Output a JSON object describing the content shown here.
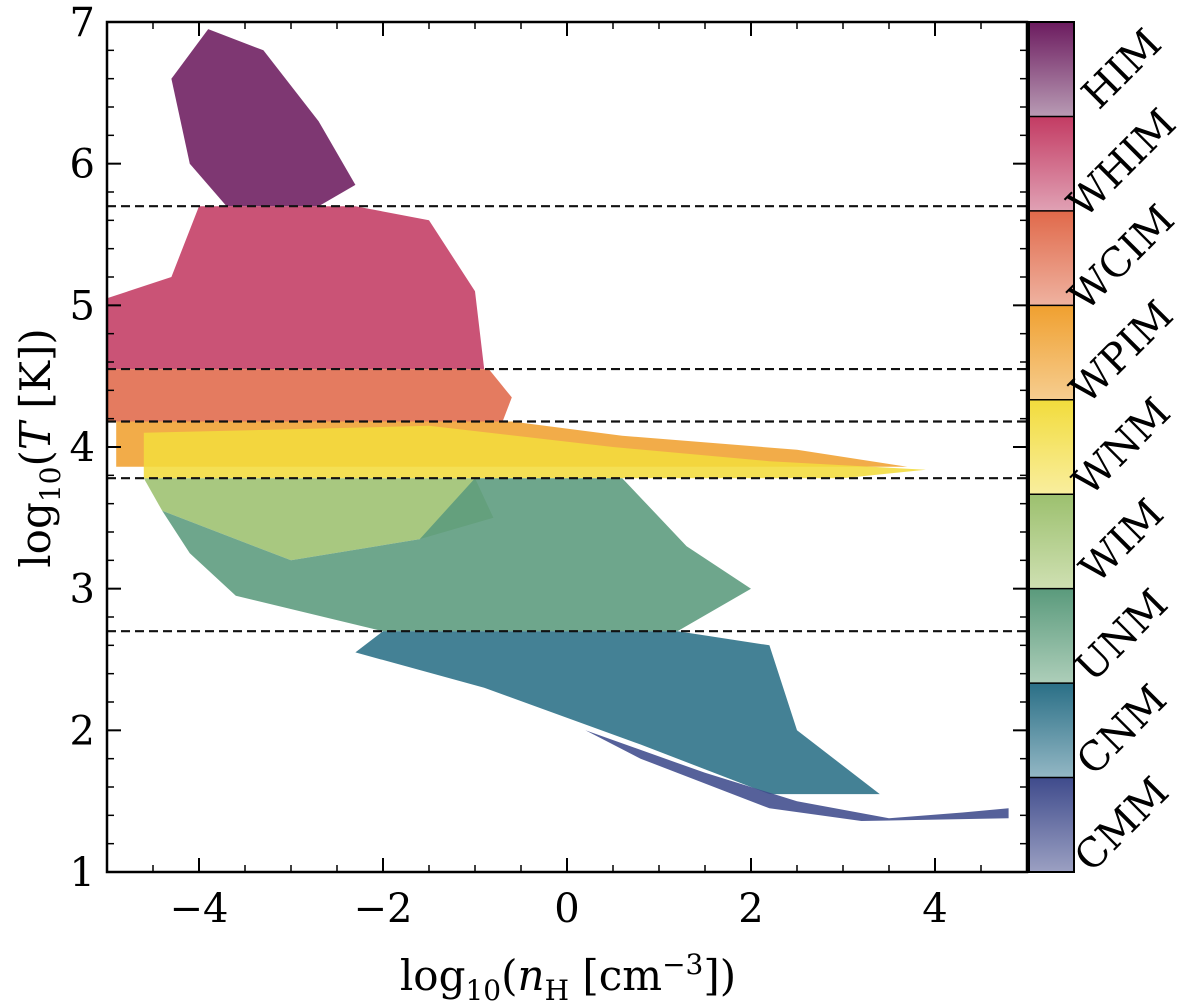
{
  "chart_data": {
    "type": "heatmap",
    "title": "",
    "xlabel": "log₁₀(nₕ [cm⁻³])",
    "xlabel_parts": {
      "prefix": "log",
      "sub": "10",
      "open": "(",
      "var": "n",
      "var_sub": "H",
      "unit": " [cm",
      "sup": "−3",
      "close": "])"
    },
    "ylabel": "log₁₀(T [K])",
    "ylabel_parts": {
      "prefix": "log",
      "sub": "10",
      "open": "(",
      "var": "T",
      "close": " [K])"
    },
    "xlim": [
      -5,
      5
    ],
    "ylim": [
      1,
      7
    ],
    "xticks": [
      -4,
      -2,
      0,
      2,
      4
    ],
    "xtick_labels": [
      "−4",
      "−2",
      "0",
      "2",
      "4"
    ],
    "yticks": [
      1,
      2,
      3,
      4,
      5,
      6,
      7
    ],
    "ytick_labels": [
      "1",
      "2",
      "3",
      "4",
      "5",
      "6",
      "7"
    ],
    "threshold_lines": [
      2.7,
      3.78,
      4.18,
      4.55,
      5.7
    ],
    "phases": [
      {
        "name": "CMM",
        "color": "#3f4b8c",
        "light": "#9ba0c2",
        "ymin": 1.0,
        "ymax": 2.0
      },
      {
        "name": "CNM",
        "color": "#2a6f86",
        "light": "#93b7c4",
        "ymin": 2.0,
        "ymax": 2.7
      },
      {
        "name": "UNM",
        "color": "#5a9a7c",
        "light": "#adceb9",
        "ymin": 2.7,
        "ymax": 3.78
      },
      {
        "name": "WIM",
        "color": "#9cc06e",
        "light": "#cfe0b2",
        "ymin": 3.78,
        "ymax": 3.78
      },
      {
        "name": "WNM",
        "color": "#f2dc3c",
        "light": "#f9ee9e",
        "ymin": 3.78,
        "ymax": 4.18
      },
      {
        "name": "WPIM",
        "color": "#f0a030",
        "light": "#f6cd8f",
        "ymin": 4.18,
        "ymax": 4.55
      },
      {
        "name": "WCIM",
        "color": "#e0694a",
        "light": "#efb2a0",
        "ymin": 4.55,
        "ymax": 4.55
      },
      {
        "name": "WHIM",
        "color": "#c33b63",
        "light": "#e0a1b4",
        "ymin": 4.55,
        "ymax": 5.7
      },
      {
        "name": "HIM",
        "color": "#6c1b5f",
        "light": "#b89bb4",
        "ymin": 5.7,
        "ymax": 7.0
      }
    ],
    "regions": [
      {
        "phase": "HIM",
        "polygon": [
          [
            -4.3,
            6.6
          ],
          [
            -3.9,
            6.95
          ],
          [
            -3.3,
            6.8
          ],
          [
            -2.7,
            6.3
          ],
          [
            -2.3,
            5.85
          ],
          [
            -2.7,
            5.7
          ],
          [
            -3.7,
            5.7
          ],
          [
            -4.1,
            6.0
          ]
        ]
      },
      {
        "phase": "WHIM",
        "polygon": [
          [
            -5.0,
            5.05
          ],
          [
            -4.3,
            5.2
          ],
          [
            -4.0,
            5.7
          ],
          [
            -2.3,
            5.7
          ],
          [
            -1.5,
            5.6
          ],
          [
            -1.0,
            5.1
          ],
          [
            -0.9,
            4.55
          ],
          [
            -5.0,
            4.55
          ]
        ]
      },
      {
        "phase": "WCIM",
        "polygon": [
          [
            -5.0,
            4.55
          ],
          [
            -0.85,
            4.55
          ],
          [
            -0.6,
            4.35
          ],
          [
            -0.7,
            4.18
          ],
          [
            -5.0,
            4.18
          ]
        ]
      },
      {
        "phase": "WPIM",
        "polygon": [
          [
            -4.9,
            4.18
          ],
          [
            -0.6,
            4.18
          ],
          [
            0.6,
            4.08
          ],
          [
            2.5,
            3.98
          ],
          [
            3.7,
            3.86
          ],
          [
            -4.9,
            3.86
          ]
        ]
      },
      {
        "phase": "WNM",
        "polygon": [
          [
            -4.6,
            4.1
          ],
          [
            -1.5,
            4.15
          ],
          [
            0.5,
            4.0
          ],
          [
            2.2,
            3.9
          ],
          [
            3.9,
            3.84
          ],
          [
            3.0,
            3.78
          ],
          [
            -4.6,
            3.78
          ]
        ]
      },
      {
        "phase": "WIM",
        "polygon": [
          [
            -4.6,
            3.78
          ],
          [
            -1.0,
            3.78
          ],
          [
            -0.8,
            3.5
          ],
          [
            -1.6,
            3.35
          ],
          [
            -3.0,
            3.2
          ],
          [
            -4.4,
            3.55
          ]
        ]
      },
      {
        "phase": "UNM",
        "polygon": [
          [
            -4.4,
            3.55
          ],
          [
            -3.0,
            3.2
          ],
          [
            -1.6,
            3.35
          ],
          [
            -1.0,
            3.78
          ],
          [
            0.6,
            3.78
          ],
          [
            1.3,
            3.3
          ],
          [
            2.0,
            3.0
          ],
          [
            1.2,
            2.7
          ],
          [
            -2.0,
            2.7
          ],
          [
            -3.6,
            2.95
          ],
          [
            -4.1,
            3.25
          ]
        ]
      },
      {
        "phase": "CNM",
        "polygon": [
          [
            -2.0,
            2.7
          ],
          [
            1.2,
            2.7
          ],
          [
            2.2,
            2.6
          ],
          [
            2.5,
            2.0
          ],
          [
            3.4,
            1.55
          ],
          [
            2.2,
            1.55
          ],
          [
            0.8,
            1.9
          ],
          [
            -0.9,
            2.3
          ],
          [
            -2.3,
            2.55
          ]
        ]
      },
      {
        "phase": "CMM",
        "polygon": [
          [
            0.2,
            2.0
          ],
          [
            1.5,
            1.7
          ],
          [
            2.5,
            1.5
          ],
          [
            3.5,
            1.38
          ],
          [
            4.3,
            1.42
          ],
          [
            4.8,
            1.45
          ],
          [
            4.8,
            1.38
          ],
          [
            3.2,
            1.36
          ],
          [
            2.2,
            1.45
          ],
          [
            0.8,
            1.8
          ]
        ]
      }
    ]
  }
}
